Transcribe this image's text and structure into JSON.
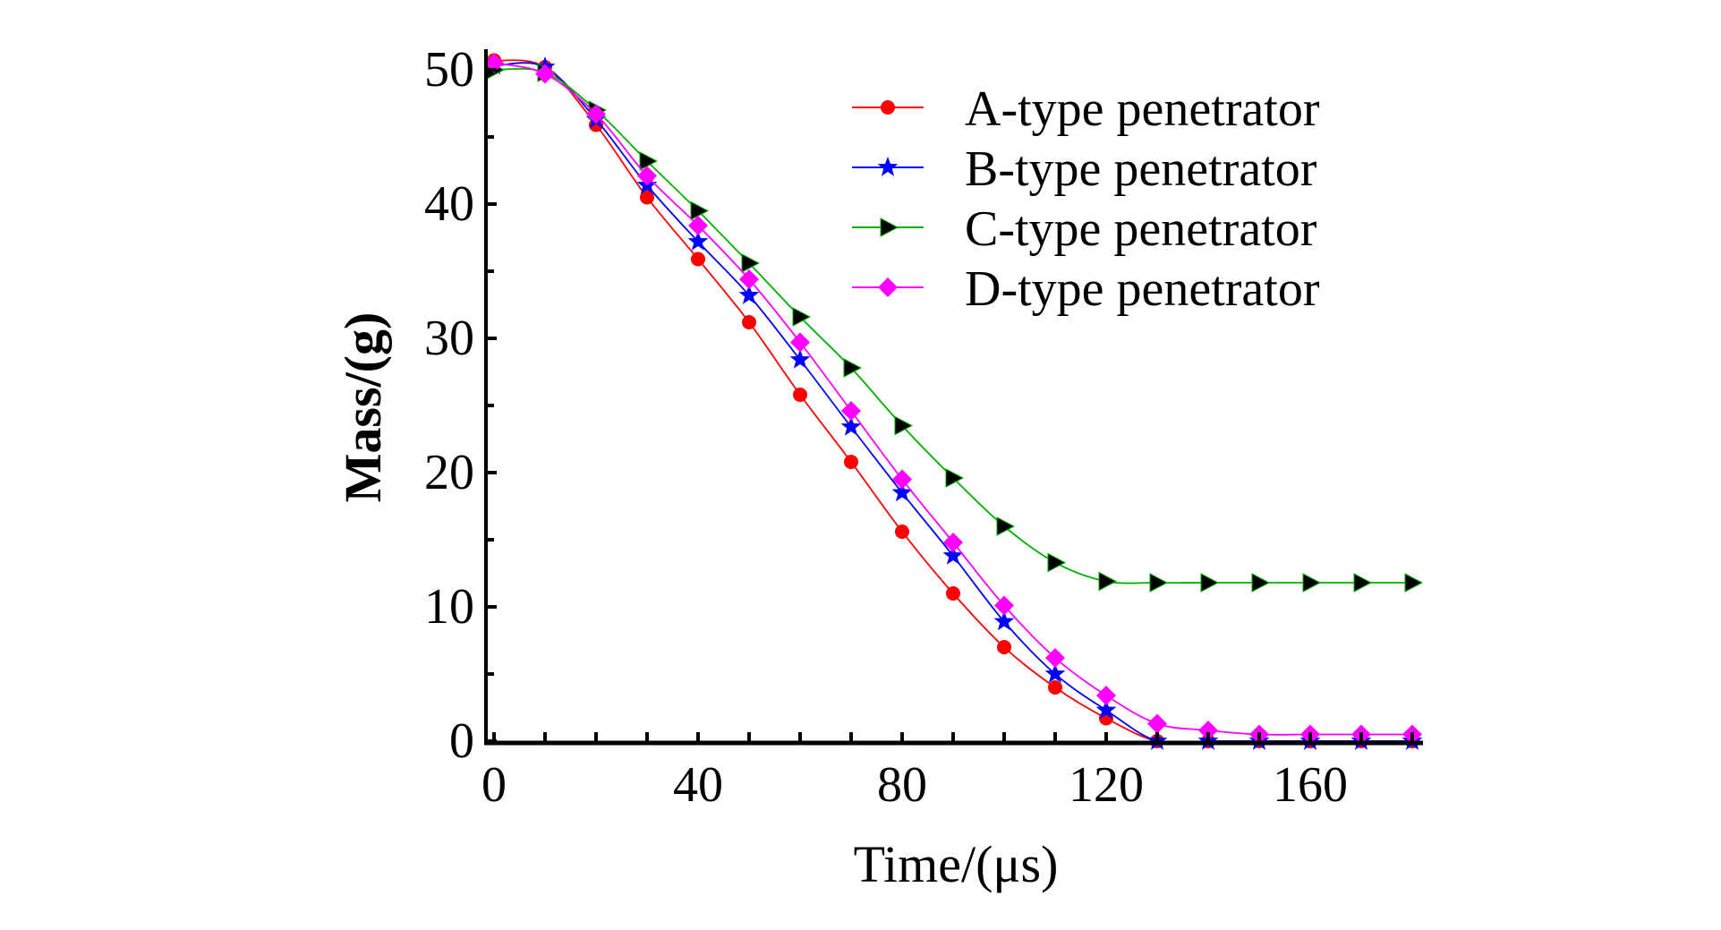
{
  "chart_data": {
    "type": "line",
    "title": "",
    "xlabel": "Time/(μs)",
    "ylabel": "Mass/(g)",
    "xlim": [
      0,
      180
    ],
    "ylim": [
      0,
      51
    ],
    "xticks": [
      0,
      40,
      80,
      120,
      160
    ],
    "xtick_labels": [
      "0",
      "40",
      "80",
      "120",
      "160"
    ],
    "yticks": [
      0,
      10,
      20,
      30,
      40,
      50
    ],
    "ytick_labels": [
      "0",
      "10",
      "20",
      "30",
      "40",
      "50"
    ],
    "grid": false,
    "legend_position": "top-right",
    "x": [
      0,
      10,
      20,
      30,
      40,
      50,
      60,
      70,
      80,
      90,
      100,
      110,
      120,
      130,
      140,
      150,
      160,
      170,
      180
    ],
    "series": [
      {
        "name": "A-type penetrator",
        "color": "#ff0000",
        "marker": "circle",
        "values": [
          50.7,
          50.2,
          45.9,
          40.5,
          35.9,
          31.2,
          25.8,
          20.8,
          15.6,
          11.0,
          7.0,
          4.0,
          1.7,
          0,
          0,
          0,
          0,
          0,
          0
        ]
      },
      {
        "name": "B-type penetrator",
        "color": "#0000ff",
        "marker": "star",
        "values": [
          50.3,
          50.2,
          46.3,
          41.4,
          37.2,
          33.2,
          28.4,
          23.4,
          18.5,
          13.8,
          8.9,
          5.0,
          2.3,
          0,
          0,
          0,
          0,
          0,
          0
        ]
      },
      {
        "name": "C-type penetrator",
        "color": "#00b000",
        "marker": "triangle-right",
        "values": [
          50.0,
          49.8,
          47.0,
          43.2,
          39.5,
          35.6,
          31.6,
          27.8,
          23.5,
          19.6,
          16.0,
          13.3,
          11.9,
          11.8,
          11.8,
          11.8,
          11.8,
          11.8,
          11.8
        ]
      },
      {
        "name": "D-type penetrator",
        "color": "#ff00ff",
        "marker": "diamond",
        "values": [
          50.5,
          49.7,
          46.7,
          42.1,
          38.4,
          34.4,
          29.7,
          24.6,
          19.5,
          14.8,
          10.1,
          6.2,
          3.4,
          1.3,
          0.8,
          0.5,
          0.5,
          0.5,
          0.5
        ]
      }
    ]
  }
}
